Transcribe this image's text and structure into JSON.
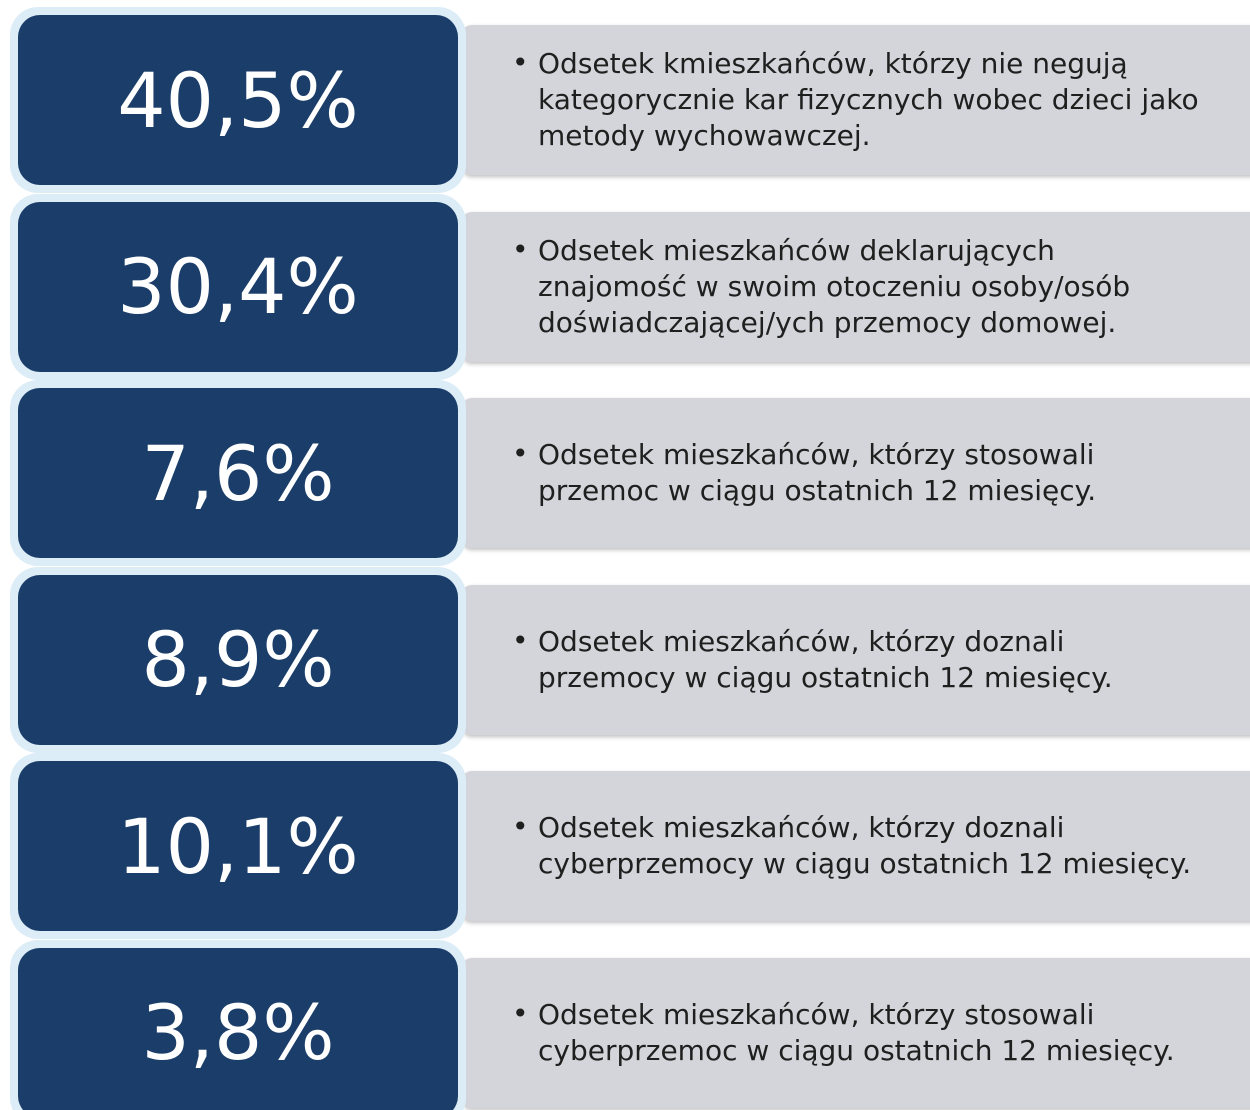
{
  "items": [
    {
      "value": "40,5%",
      "lines": [
        "Odsetek kmieszkańców, którzy nie negują",
        "kategorycznie kar fizycznych wobec dzieci jako",
        "metody wychowawczej."
      ]
    },
    {
      "value": "30,4%",
      "lines": [
        "Odsetek mieszkańców deklarujących",
        "znajomość w swoim otoczeniu osoby/osób",
        "doświadczającej/ych przemocy domowej."
      ]
    },
    {
      "value": "7,6%",
      "lines": [
        "Odsetek mieszkańców, którzy stosowali",
        "przemoc w ciągu ostatnich 12 miesięcy."
      ]
    },
    {
      "value": "8,9%",
      "lines": [
        "Odsetek mieszkańców, którzy doznali",
        "przemocy w ciągu ostatnich 12 miesięcy."
      ]
    },
    {
      "value": "10,1%",
      "lines": [
        "Odsetek mieszkańców, którzy doznali",
        "cyberprzemocy w ciągu ostatnich 12 miesięcy."
      ]
    },
    {
      "value": "3,8%",
      "lines": [
        "Odsetek mieszkańców, którzy stosowali",
        "cyberprzemoc w ciągu ostatnich 12 miesięcy."
      ]
    }
  ]
}
